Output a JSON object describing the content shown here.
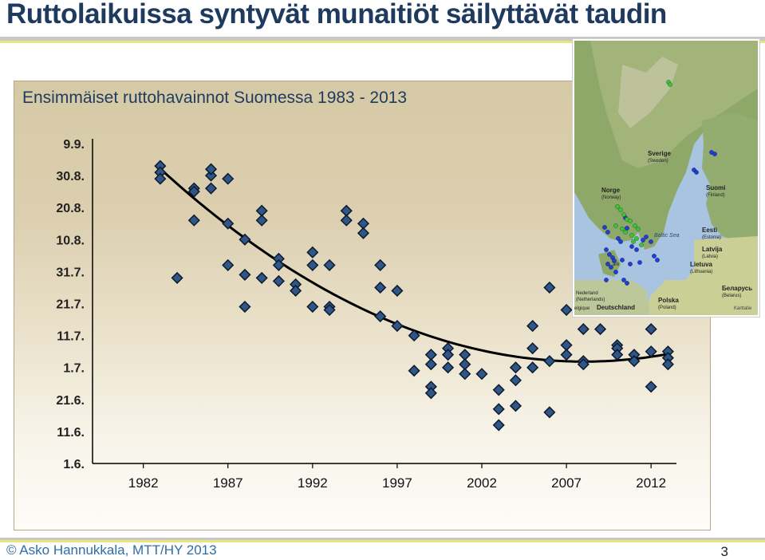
{
  "slide": {
    "title": "Ruttolaikuissa syntyvät munaitiöt säilyttävät taudin",
    "footer": "© Asko Hannukkala, MTT/HY 2013",
    "page_number": "3"
  },
  "colors": {
    "title": "#1f3a5f",
    "marker_fill": "#2f5686",
    "marker_stroke": "#0c1a2e",
    "trend_line": "#000000",
    "footer": "#2e6ea6"
  },
  "chart_data": {
    "type": "scatter",
    "title": "Ensimmäiset ruttohavainnot Suomessa 1983 - 2013",
    "xlabel": "",
    "ylabel": "",
    "x_ticks": [
      1982,
      1987,
      1992,
      1997,
      2002,
      2007,
      2012
    ],
    "xlim": [
      1979,
      2013.5
    ],
    "y_ticks": [
      {
        "label": "1.6.",
        "day": 0
      },
      {
        "label": "11.6.",
        "day": 10
      },
      {
        "label": "21.6.",
        "day": 20
      },
      {
        "label": "1.7.",
        "day": 30
      },
      {
        "label": "11.7.",
        "day": 40
      },
      {
        "label": "21.7.",
        "day": 50
      },
      {
        "label": "31.7.",
        "day": 60
      },
      {
        "label": "10.8.",
        "day": 70
      },
      {
        "label": "20.8.",
        "day": 80
      },
      {
        "label": "30.8.",
        "day": 90
      },
      {
        "label": "9.9.",
        "day": 100
      }
    ],
    "ylim_days_from_june_1": [
      0,
      100
    ],
    "grid": false,
    "legend": "none",
    "trend_line": {
      "type": "polynomial"
    },
    "points": [
      {
        "year": 1983,
        "day": 93
      },
      {
        "year": 1983,
        "day": 91
      },
      {
        "year": 1983,
        "day": 89
      },
      {
        "year": 1984,
        "day": 58
      },
      {
        "year": 1985,
        "day": 86
      },
      {
        "year": 1985,
        "day": 85
      },
      {
        "year": 1985,
        "day": 76
      },
      {
        "year": 1986,
        "day": 86
      },
      {
        "year": 1986,
        "day": 90
      },
      {
        "year": 1986,
        "day": 92
      },
      {
        "year": 1987,
        "day": 89
      },
      {
        "year": 1987,
        "day": 75
      },
      {
        "year": 1987,
        "day": 62
      },
      {
        "year": 1988,
        "day": 70
      },
      {
        "year": 1988,
        "day": 59
      },
      {
        "year": 1988,
        "day": 49
      },
      {
        "year": 1989,
        "day": 79
      },
      {
        "year": 1989,
        "day": 76
      },
      {
        "year": 1989,
        "day": 58
      },
      {
        "year": 1990,
        "day": 64
      },
      {
        "year": 1990,
        "day": 62
      },
      {
        "year": 1990,
        "day": 57
      },
      {
        "year": 1991,
        "day": 56
      },
      {
        "year": 1991,
        "day": 54
      },
      {
        "year": 1992,
        "day": 66
      },
      {
        "year": 1992,
        "day": 62
      },
      {
        "year": 1992,
        "day": 49
      },
      {
        "year": 1993,
        "day": 62
      },
      {
        "year": 1993,
        "day": 49
      },
      {
        "year": 1993,
        "day": 48
      },
      {
        "year": 1994,
        "day": 79
      },
      {
        "year": 1994,
        "day": 76
      },
      {
        "year": 1995,
        "day": 75
      },
      {
        "year": 1995,
        "day": 72
      },
      {
        "year": 1996,
        "day": 62
      },
      {
        "year": 1996,
        "day": 55
      },
      {
        "year": 1996,
        "day": 46
      },
      {
        "year": 1997,
        "day": 54
      },
      {
        "year": 1997,
        "day": 43
      },
      {
        "year": 1998,
        "day": 40
      },
      {
        "year": 1998,
        "day": 29
      },
      {
        "year": 1999,
        "day": 34
      },
      {
        "year": 1999,
        "day": 31
      },
      {
        "year": 1999,
        "day": 24
      },
      {
        "year": 1999,
        "day": 22
      },
      {
        "year": 2000,
        "day": 36
      },
      {
        "year": 2000,
        "day": 34
      },
      {
        "year": 2000,
        "day": 30
      },
      {
        "year": 2001,
        "day": 34
      },
      {
        "year": 2001,
        "day": 31
      },
      {
        "year": 2001,
        "day": 28
      },
      {
        "year": 2002,
        "day": 28
      },
      {
        "year": 2003,
        "day": 23
      },
      {
        "year": 2003,
        "day": 17
      },
      {
        "year": 2003,
        "day": 12
      },
      {
        "year": 2004,
        "day": 30
      },
      {
        "year": 2004,
        "day": 26
      },
      {
        "year": 2004,
        "day": 18
      },
      {
        "year": 2005,
        "day": 43
      },
      {
        "year": 2005,
        "day": 36
      },
      {
        "year": 2005,
        "day": 30
      },
      {
        "year": 2006,
        "day": 55
      },
      {
        "year": 2006,
        "day": 32
      },
      {
        "year": 2006,
        "day": 16
      },
      {
        "year": 2007,
        "day": 48
      },
      {
        "year": 2007,
        "day": 37
      },
      {
        "year": 2007,
        "day": 34
      },
      {
        "year": 2008,
        "day": 42
      },
      {
        "year": 2008,
        "day": 32
      },
      {
        "year": 2008,
        "day": 31
      },
      {
        "year": 2009,
        "day": 42
      },
      {
        "year": 2010,
        "day": 37
      },
      {
        "year": 2010,
        "day": 36
      },
      {
        "year": 2010,
        "day": 34
      },
      {
        "year": 2011,
        "day": 34
      },
      {
        "year": 2011,
        "day": 32
      },
      {
        "year": 2012,
        "day": 42
      },
      {
        "year": 2012,
        "day": 35
      },
      {
        "year": 2012,
        "day": 24
      },
      {
        "year": 2013,
        "day": 35
      },
      {
        "year": 2013,
        "day": 33
      },
      {
        "year": 2013,
        "day": 31
      }
    ]
  },
  "map_inset": {
    "labels": {
      "sweden": "Sverige",
      "sweden_sub": "(Sweden)",
      "norway": "Norge",
      "norway_sub": "(Norway)",
      "finland": "Suomi",
      "finland_sub": "(Finland)",
      "estonia": "Eesti",
      "estonia_sub": "(Estonia)",
      "latvia": "Latvija",
      "latvia_sub": "(Latvia)",
      "lithuania": "Lietuva",
      "lithuania_sub": "(Lithuania)",
      "belarus": "Беларусь",
      "belarus_sub": "(Belarus)",
      "poland": "Polska",
      "poland_sub": "(Poland)",
      "netherlands": "Nederland",
      "netherlands_sub": "(Netherlands)",
      "germany": "Deutschland",
      "belgium": "elgique",
      "denmark": "ark",
      "denmark_sub": "(mark)",
      "sea": "Baltic Sea",
      "attribution": "Karttatie"
    },
    "dot_colors": {
      "blue": "#1f3fd6",
      "green": "#3fc23a"
    }
  }
}
